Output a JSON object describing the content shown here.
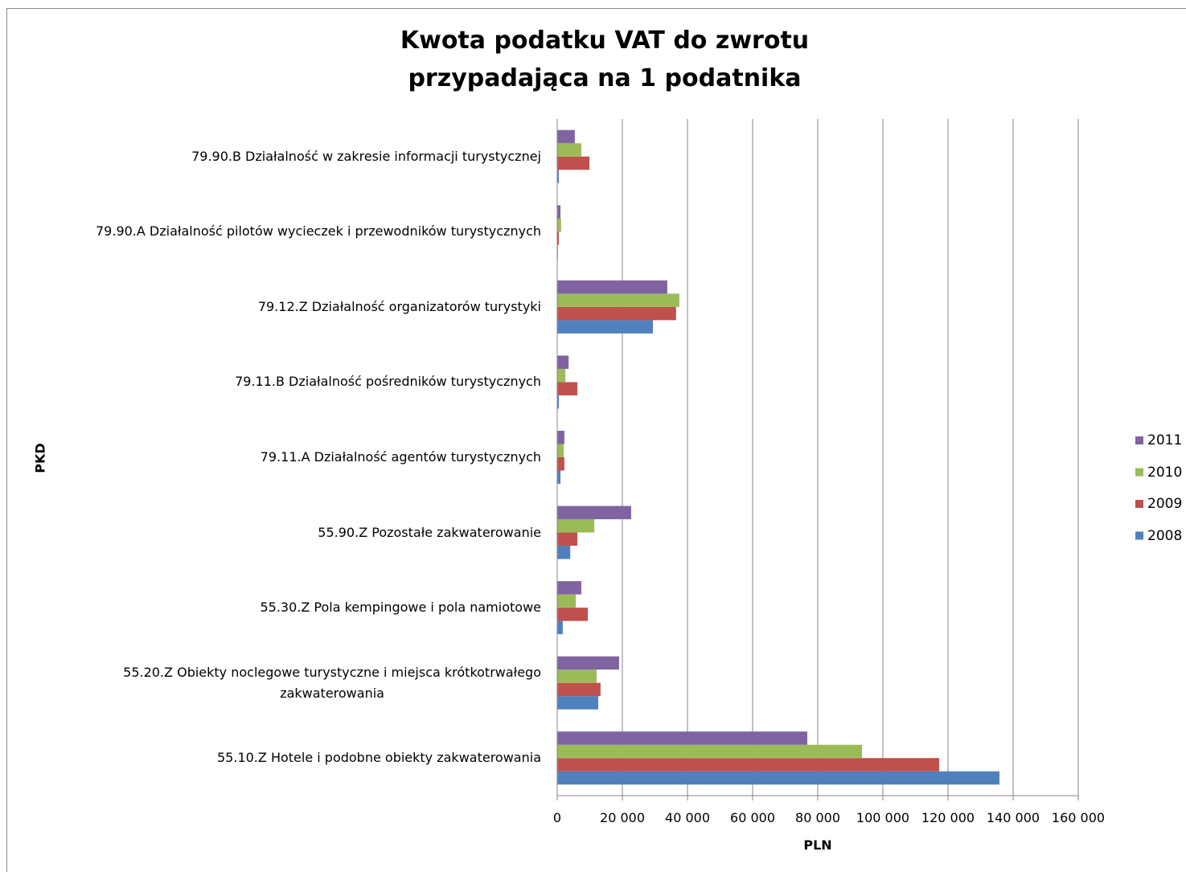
{
  "chart_data": {
    "type": "hbar",
    "title": "Kwota podatku VAT do zwrotu\nprzypadająca na 1 podatnika",
    "x_label": "PLN",
    "y_label": "PKD",
    "categories": [
      "55.10.Z Hotele i podobne obiekty zakwaterowania",
      "55.20.Z Obiekty noclegowe turystyczne i miejsca krótkotrwałego\nzakwaterowania",
      "55.30.Z Pola kempingowe i pola namiotowe",
      "55.90.Z Pozostałe zakwaterowanie",
      "79.11.A Działalność agentów turystycznych",
      "79.11.B Działalność pośredników turystycznych",
      "79.12.Z Działalność organizatorów turystyki",
      "79.90.A Działalność pilotów wycieczek i przewodników turystycznych",
      "79.90.B Działalność w zakresie informacji turystycznej"
    ],
    "series": [
      {
        "name": "2008",
        "color": "#4f81bd",
        "values": [
          135800,
          12600,
          1700,
          4000,
          1000,
          500,
          29400,
          200,
          500
        ]
      },
      {
        "name": "2009",
        "color": "#c0504d",
        "values": [
          117300,
          13300,
          9400,
          6200,
          2200,
          6200,
          36500,
          500,
          9900
        ]
      },
      {
        "name": "2010",
        "color": "#9bbb59",
        "values": [
          93600,
          12100,
          5700,
          11400,
          2000,
          2500,
          37500,
          1200,
          7400
        ]
      },
      {
        "name": "2011",
        "color": "#8064a2",
        "values": [
          76800,
          19000,
          7400,
          22700,
          2200,
          3500,
          33800,
          1000,
          5400
        ]
      }
    ],
    "xlim": [
      0,
      160000
    ],
    "xticks": [
      0,
      {
        "value": 20000,
        "label": "20 000"
      },
      {
        "value": 40000,
        "label": "40 000"
      },
      {
        "value": 60000,
        "label": "60 000"
      },
      {
        "value": 80000,
        "label": "80 000"
      },
      {
        "value": 100000,
        "label": "100 000"
      },
      {
        "value": 120000,
        "label": "120 000"
      },
      {
        "value": 140000,
        "label": "140 000"
      },
      {
        "value": 160000,
        "label": "160 000"
      }
    ],
    "grid": true,
    "legend": "right"
  }
}
